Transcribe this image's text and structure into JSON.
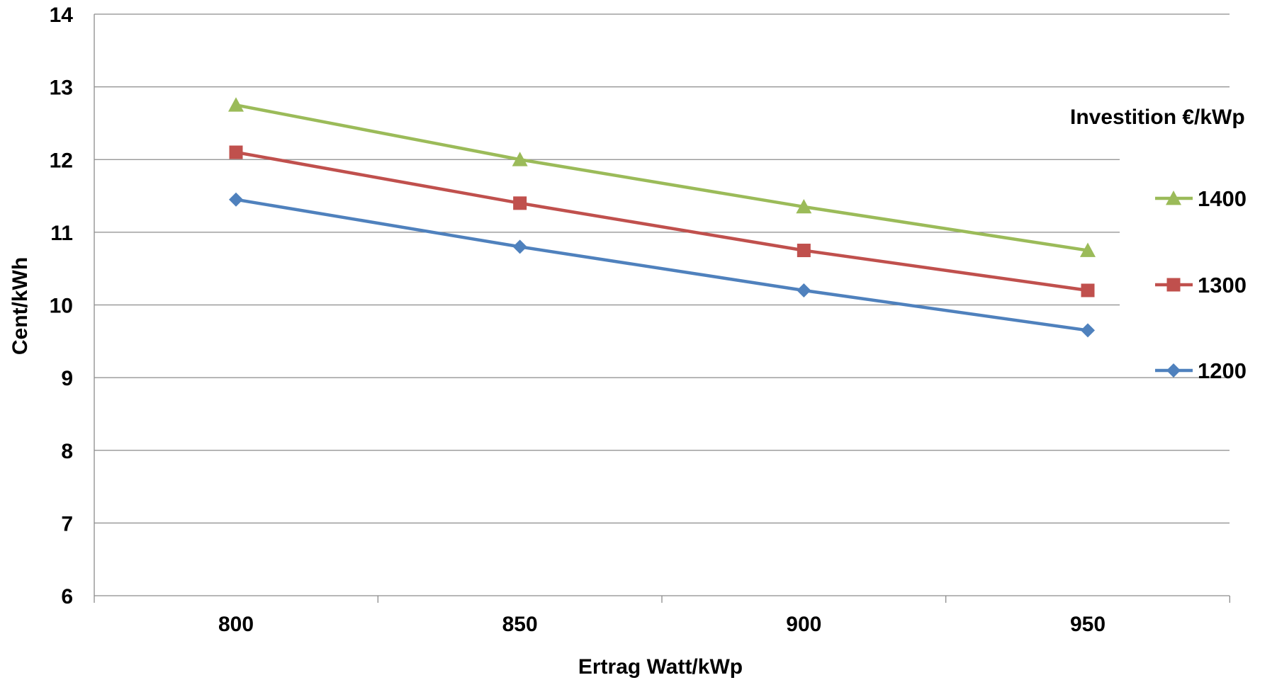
{
  "chart_data": {
    "type": "line",
    "xlabel": "Ertrag Watt/kWp",
    "ylabel": "Cent/kWh",
    "categories": [
      "800",
      "850",
      "900",
      "950"
    ],
    "ylim": [
      6,
      14
    ],
    "y_ticks": [
      "6",
      "7",
      "8",
      "9",
      "10",
      "11",
      "12",
      "13",
      "14"
    ],
    "grid": true,
    "legend": {
      "title": "Investition €/kWp",
      "placement": "right"
    },
    "series": [
      {
        "name": "1400",
        "values": [
          12.75,
          12.0,
          11.35,
          10.75
        ],
        "color": "#9bbb59",
        "marker": "triangle"
      },
      {
        "name": "1300",
        "values": [
          12.1,
          11.4,
          10.75,
          10.2
        ],
        "color": "#c0504d",
        "marker": "square"
      },
      {
        "name": "1200",
        "values": [
          11.45,
          10.8,
          10.2,
          9.65
        ],
        "color": "#4f81bd",
        "marker": "diamond"
      }
    ]
  }
}
